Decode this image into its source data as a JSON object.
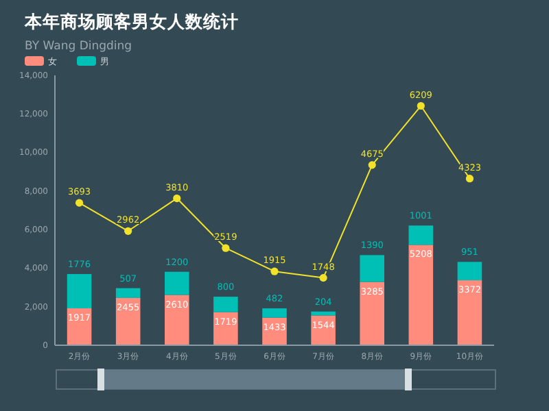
{
  "chart_data": {
    "type": "bar",
    "title": "本年商场顾客男女人数统计",
    "subtitle": "BY Wang Dingding",
    "categories": [
      "2月份",
      "3月份",
      "4月份",
      "5月份",
      "6月份",
      "7月份",
      "8月份",
      "9月份",
      "10月份"
    ],
    "stacked": true,
    "data_labels": true,
    "legend": "top left",
    "grid": false,
    "ylim": [
      0,
      14000
    ],
    "yticks": [
      0,
      {
        "value": 2000,
        "label": "2,000"
      },
      {
        "value": 4000,
        "label": "4,000"
      },
      {
        "value": 6000,
        "label": "6,000"
      },
      {
        "value": 8000,
        "label": "8,000"
      },
      {
        "value": 10000,
        "label": "10,000"
      },
      {
        "value": 12000,
        "label": "12,000"
      },
      {
        "value": 14000,
        "label": "14,000"
      }
    ],
    "y2lim": [
      0,
      7000
    ],
    "marker": "circle",
    "series": [
      {
        "name": "女",
        "color": "#ff8c7c",
        "values": [
          1917,
          2455,
          2610,
          1719,
          1433,
          1544,
          3285,
          5208,
          3372
        ]
      },
      {
        "name": "男",
        "color": "#00bfb5",
        "values": [
          1776,
          507,
          1200,
          800,
          482,
          204,
          1390,
          1001,
          951
        ]
      },
      {
        "type": "line",
        "axis": "y2",
        "color": "#f2e22a",
        "values": [
          3693,
          2962,
          3810,
          2519,
          1915,
          1748,
          4675,
          6209,
          4323
        ]
      }
    ]
  }
}
